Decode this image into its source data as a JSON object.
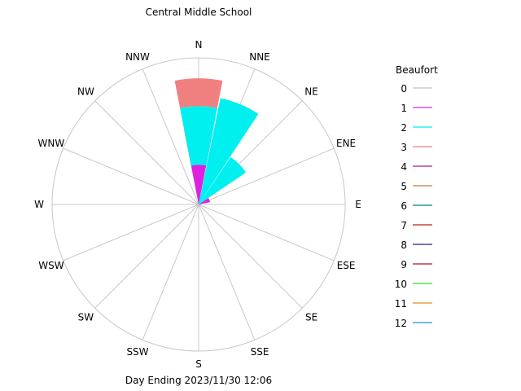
{
  "chart_data": {
    "type": "windrose",
    "title": "Central Middle School",
    "footer": "Day Ending 2023/11/30 12:06",
    "directions": [
      "N",
      "NNE",
      "NE",
      "ENE",
      "E",
      "ESE",
      "SE",
      "SSE",
      "S",
      "SSW",
      "SW",
      "WSW",
      "W",
      "WNW",
      "NW",
      "NNW"
    ],
    "radial_max": 100,
    "grid": true,
    "legend_position": "right",
    "legend": {
      "title": "Beaufort",
      "entries": [
        {
          "label": "0",
          "color": "#c0c0c0"
        },
        {
          "label": "1",
          "color": "#e020e0"
        },
        {
          "label": "2",
          "color": "#00f0f0"
        },
        {
          "label": "3",
          "color": "#f08080"
        },
        {
          "label": "4",
          "color": "#a020a0"
        },
        {
          "label": "5",
          "color": "#c08040"
        },
        {
          "label": "6",
          "color": "#008080"
        },
        {
          "label": "7",
          "color": "#c02020"
        },
        {
          "label": "8",
          "color": "#202080"
        },
        {
          "label": "9",
          "color": "#b01030"
        },
        {
          "label": "10",
          "color": "#20e020"
        },
        {
          "label": "11",
          "color": "#e09020"
        },
        {
          "label": "12",
          "color": "#2090c0"
        }
      ]
    },
    "series": [
      {
        "name": "1",
        "color": "#e020e0",
        "values": [
          27,
          0,
          0,
          8,
          0,
          0,
          0,
          0,
          0,
          0,
          0,
          0,
          0,
          0,
          0,
          0
        ]
      },
      {
        "name": "2",
        "color": "#00f0f0",
        "values": [
          40,
          74,
          39,
          0,
          0,
          0,
          0,
          0,
          0,
          0,
          0,
          0,
          0,
          0,
          0,
          0
        ]
      },
      {
        "name": "3",
        "color": "#f08080",
        "values": [
          19,
          0,
          0,
          0,
          0,
          0,
          0,
          0,
          0,
          0,
          0,
          0,
          0,
          0,
          0,
          0
        ]
      }
    ],
    "inner_limits": [
      52,
      8,
      0,
      0,
      0,
      0,
      0,
      0,
      0,
      0,
      0,
      0,
      0,
      0,
      0,
      0
    ]
  }
}
